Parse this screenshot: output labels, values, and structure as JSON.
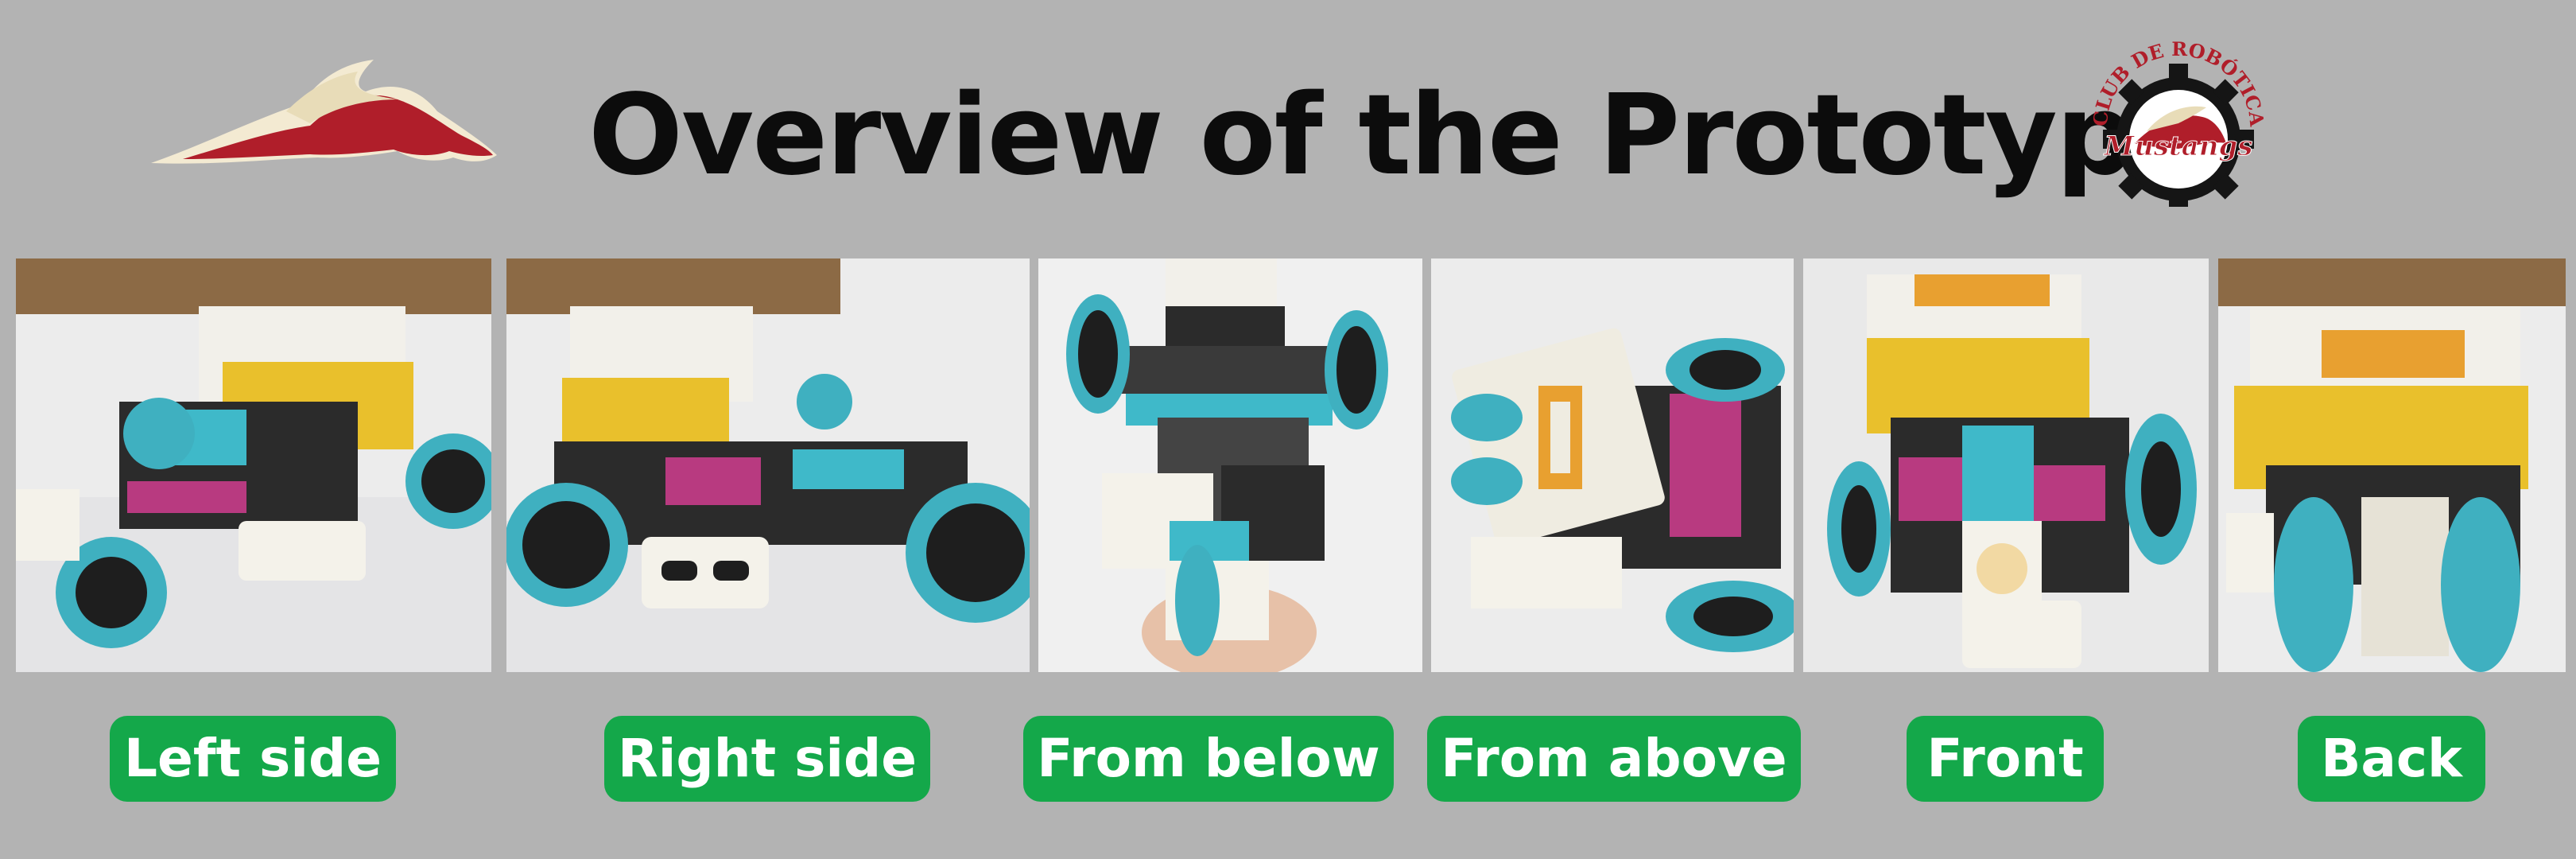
{
  "title": "Overview of the Prototype",
  "logo_right_text": {
    "top": "CLUB DE ROBÓTICA",
    "name": "Mustangs"
  },
  "views": [
    {
      "label": "Left side"
    },
    {
      "label": "Right side"
    },
    {
      "label": "From below"
    },
    {
      "label": "From above"
    },
    {
      "label": "Front"
    },
    {
      "label": "Back"
    }
  ],
  "colors": {
    "background": "#b3b3b3",
    "pill": "#14a84a",
    "title": "#0c0c0c",
    "brand_red": "#b01e2a"
  }
}
